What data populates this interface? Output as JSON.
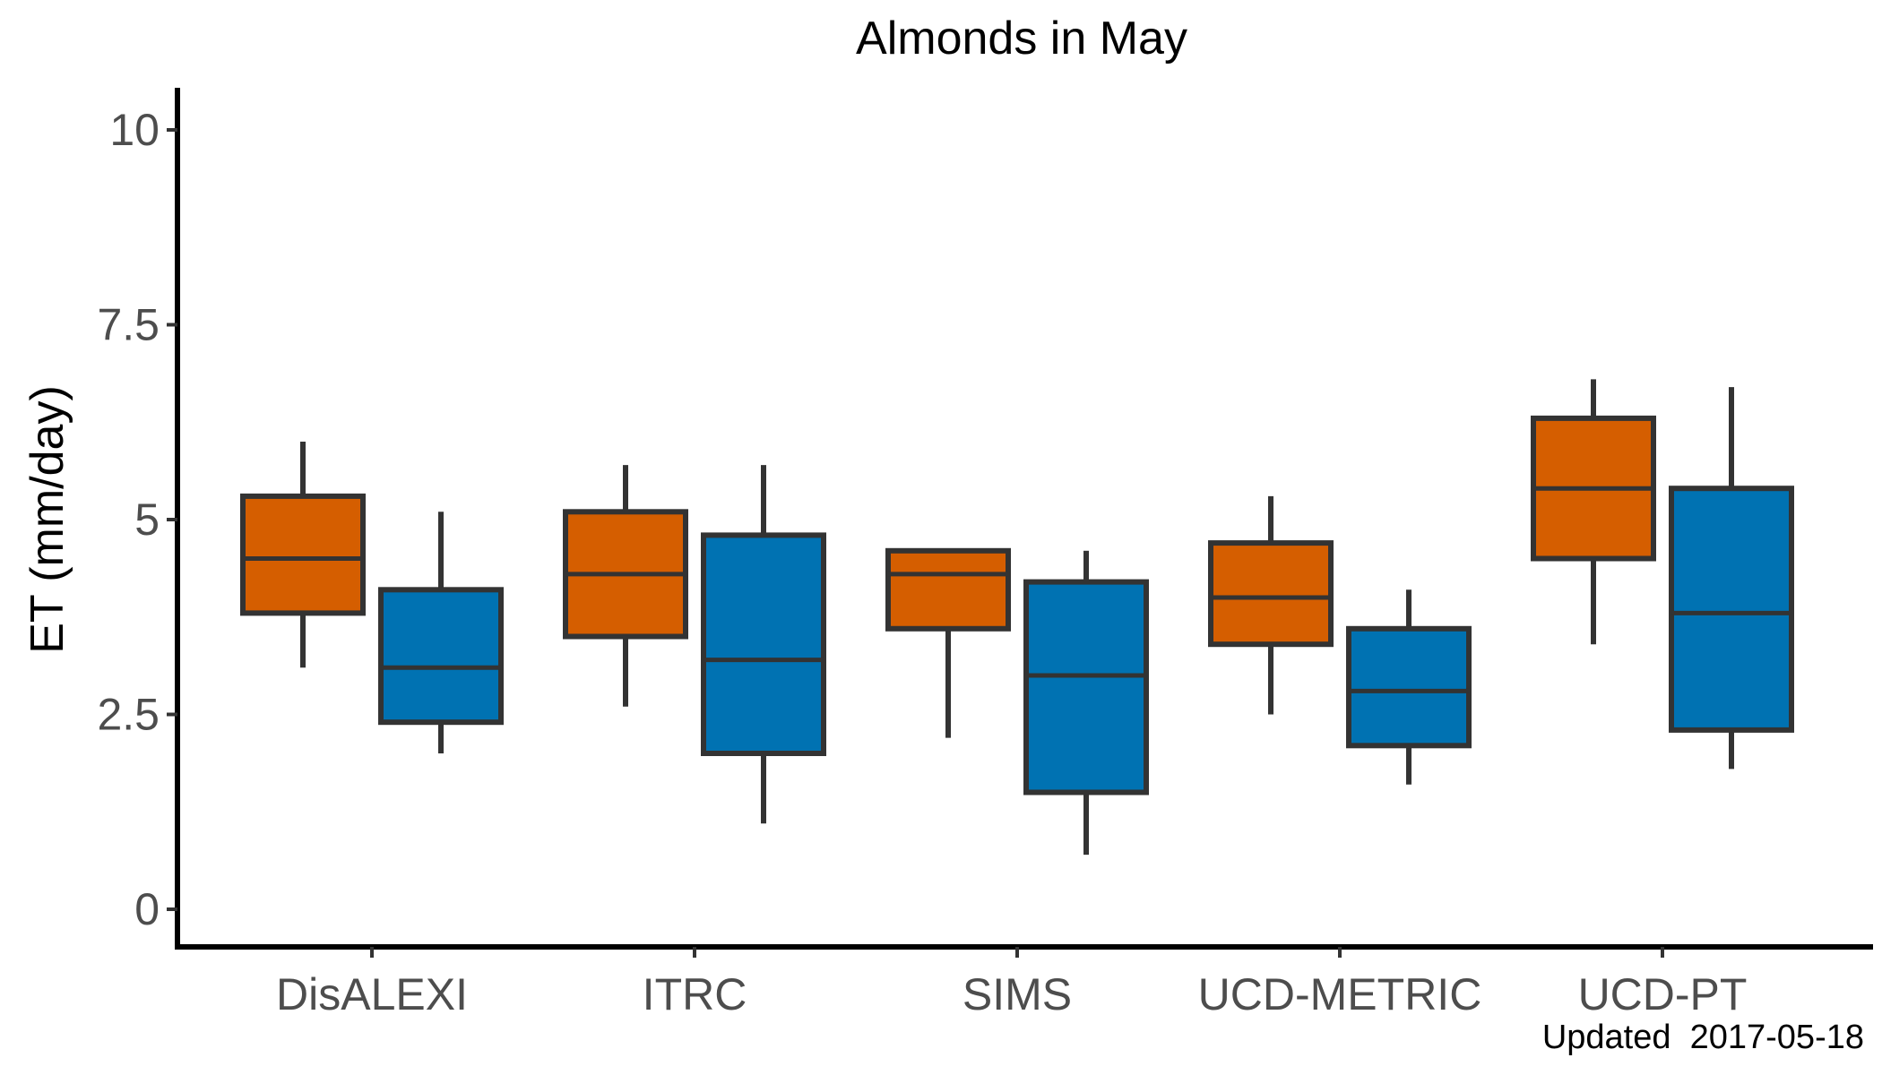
{
  "chart_data": {
    "type": "boxplot",
    "title": "Almonds in May",
    "ylabel": "ET (mm/day)",
    "xlabel": "",
    "ylim": [
      -0.5,
      10.5
    ],
    "yticks": [
      0,
      2.5,
      5,
      7.5,
      10
    ],
    "ytick_labels": [
      "0",
      "2.5",
      "5",
      "7.5",
      "10"
    ],
    "categories": [
      "DisALEXI",
      "ITRC",
      "SIMS",
      "UCD-METRIC",
      "UCD-PT"
    ],
    "grid": false,
    "legend": "none",
    "caption": "Updated  2017-05-18",
    "series": [
      {
        "color": "#D55E00",
        "boxes": [
          {
            "whisker_low": 3.1,
            "q1": 3.8,
            "median": 4.5,
            "q3": 5.3,
            "whisker_high": 6.0
          },
          {
            "whisker_low": 2.6,
            "q1": 3.5,
            "median": 4.3,
            "q3": 5.1,
            "whisker_high": 5.7
          },
          {
            "whisker_low": 2.2,
            "q1": 3.6,
            "median": 4.3,
            "q3": 4.6,
            "whisker_high": 4.6
          },
          {
            "whisker_low": 2.5,
            "q1": 3.4,
            "median": 4.0,
            "q3": 4.7,
            "whisker_high": 5.3
          },
          {
            "whisker_low": 3.4,
            "q1": 4.5,
            "median": 5.4,
            "q3": 6.3,
            "whisker_high": 6.8
          }
        ]
      },
      {
        "color": "#0072B2",
        "boxes": [
          {
            "whisker_low": 2.0,
            "q1": 2.4,
            "median": 3.1,
            "q3": 4.1,
            "whisker_high": 5.1
          },
          {
            "whisker_low": 1.1,
            "q1": 2.0,
            "median": 3.2,
            "q3": 4.8,
            "whisker_high": 5.7
          },
          {
            "whisker_low": 0.7,
            "q1": 1.5,
            "median": 3.0,
            "q3": 4.2,
            "whisker_high": 4.6
          },
          {
            "whisker_low": 1.6,
            "q1": 2.1,
            "median": 2.8,
            "q3": 3.6,
            "whisker_high": 4.1
          },
          {
            "whisker_low": 1.8,
            "q1": 2.3,
            "median": 3.8,
            "q3": 5.4,
            "whisker_high": 6.7
          }
        ]
      }
    ]
  }
}
